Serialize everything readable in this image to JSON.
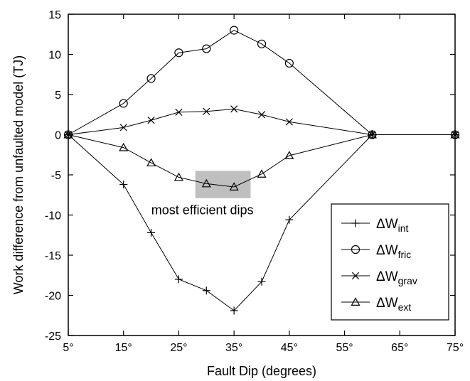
{
  "chart_data": {
    "type": "line",
    "xlabel": "Fault Dip (degrees)",
    "ylabel": "Work difference from unfaulted model (TJ)",
    "xlim": [
      5,
      75
    ],
    "ylim": [
      -25,
      15
    ],
    "xticks": [
      5,
      15,
      25,
      35,
      45,
      55,
      65,
      75
    ],
    "xtick_labels": [
      "5°",
      "15°",
      "25°",
      "35°",
      "45°",
      "55°",
      "65°",
      "75°"
    ],
    "yticks": [
      15,
      10,
      5,
      0,
      -5,
      -10,
      -15,
      -20,
      -25
    ],
    "grid": false,
    "legend_position": "bottom-right",
    "series": [
      {
        "name": "ΔW",
        "subscript": "int",
        "marker": "plus",
        "x": [
          5,
          15,
          20,
          25,
          30,
          35,
          40,
          45,
          60,
          75
        ],
        "y": [
          0,
          -6.2,
          -12.2,
          -18,
          -19.4,
          -21.9,
          -18.3,
          -10.6,
          0,
          0
        ]
      },
      {
        "name": "ΔW",
        "subscript": "fric",
        "marker": "circle",
        "x": [
          5,
          15,
          20,
          25,
          30,
          35,
          40,
          45,
          60,
          75
        ],
        "y": [
          0,
          3.9,
          7.0,
          10.2,
          10.7,
          13.0,
          11.3,
          8.9,
          0,
          0
        ]
      },
      {
        "name": "ΔW",
        "subscript": "grav",
        "marker": "x",
        "x": [
          5,
          15,
          20,
          25,
          30,
          35,
          40,
          45,
          60,
          75
        ],
        "y": [
          0,
          0.9,
          1.8,
          2.8,
          2.9,
          3.2,
          2.5,
          1.6,
          0,
          0
        ]
      },
      {
        "name": "ΔW",
        "subscript": "ext",
        "marker": "triangle",
        "x": [
          5,
          15,
          20,
          25,
          30,
          35,
          40,
          45,
          60,
          75
        ],
        "y": [
          0,
          -1.6,
          -3.5,
          -5.3,
          -6.1,
          -6.5,
          -4.9,
          -2.6,
          0,
          0
        ]
      }
    ],
    "highlight": {
      "x_range": [
        28,
        38
      ],
      "y_range": [
        -7.9,
        -4.5
      ],
      "color": "#bfbfbf"
    },
    "annotation": {
      "text": "most efficient dips",
      "x": 37,
      "y": -9.4
    }
  }
}
